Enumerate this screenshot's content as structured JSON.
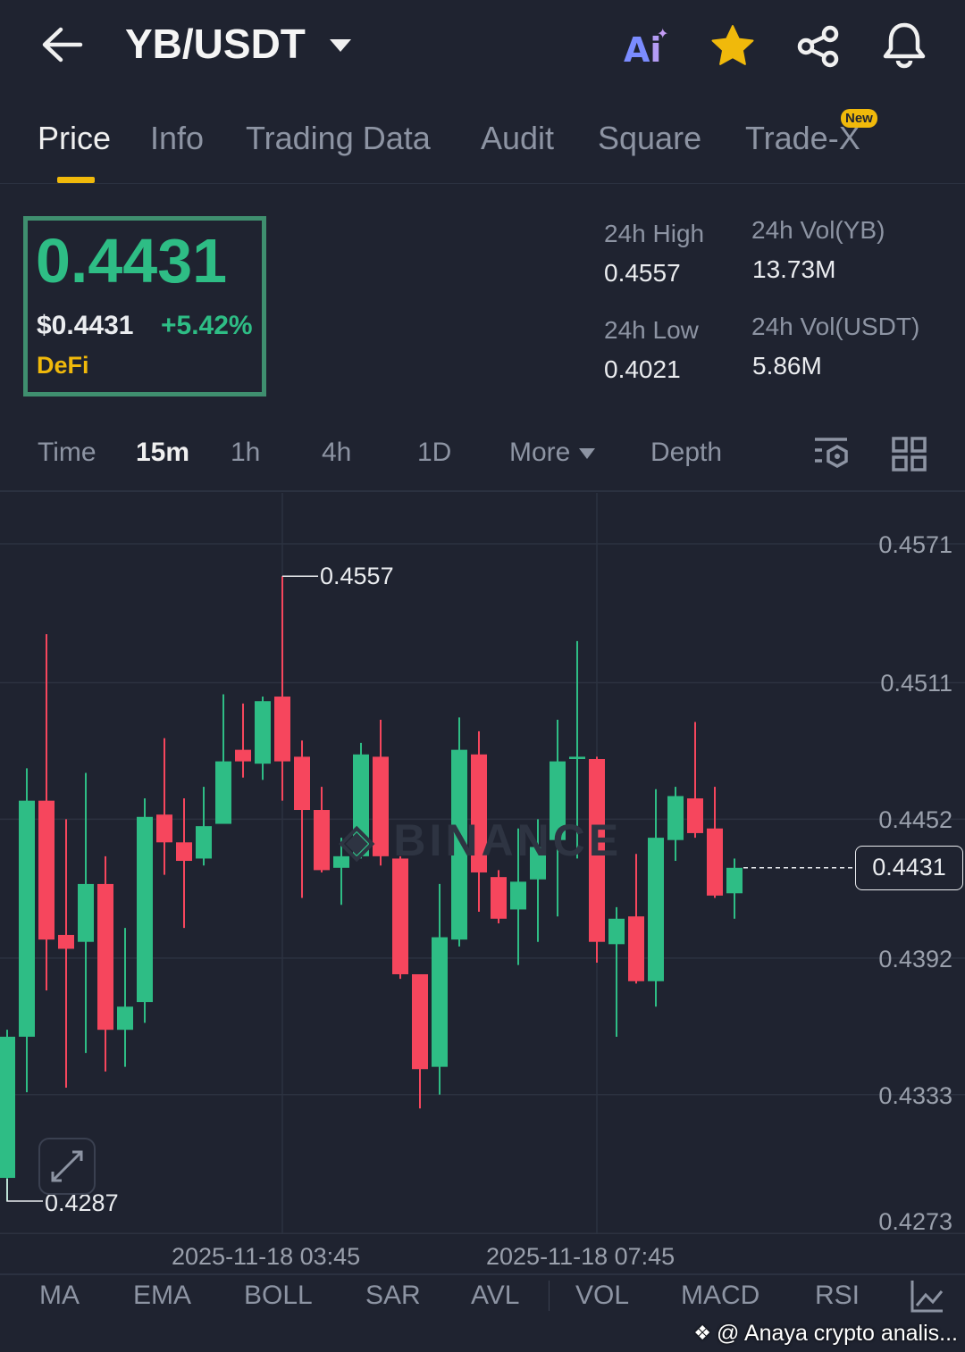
{
  "header": {
    "title": "YB/USDT",
    "icons": [
      "back-arrow-icon",
      "chevron-down-icon",
      "ai-icon",
      "star-icon",
      "share-icon",
      "bell-icon"
    ]
  },
  "tabs": [
    {
      "label": "Price"
    },
    {
      "label": "Info"
    },
    {
      "label": "Trading Data"
    },
    {
      "label": "Audit"
    },
    {
      "label": "Square"
    },
    {
      "label": "Trade-X",
      "badge": "New"
    }
  ],
  "price": {
    "last": "0.4431",
    "usd": "$0.4431",
    "change": "+5.42%",
    "tag": "DeFi"
  },
  "stats": {
    "high_label": "24h High",
    "high": "0.4557",
    "low_label": "24h Low",
    "low": "0.4021",
    "vol_yb_label": "24h Vol(YB)",
    "vol_yb": "13.73M",
    "vol_usdt_label": "24h Vol(USDT)",
    "vol_usdt": "5.86M"
  },
  "timeframes": {
    "time": "Time",
    "items": [
      "15m",
      "1h",
      "4h",
      "1D"
    ],
    "active": "15m",
    "more": "More",
    "depth": "Depth"
  },
  "colors": {
    "up": "#2ebd85",
    "down": "#f6465d",
    "accent": "#f0b90b",
    "bg": "#1f2330"
  },
  "indicators": [
    "MA",
    "EMA",
    "BOLL",
    "SAR",
    "AVL",
    "VOL",
    "MACD",
    "RSI"
  ],
  "watermark": "@ Anaya crypto analis...",
  "chart_data": {
    "type": "candlestick",
    "interval": "15m",
    "ylim": [
      0.42727,
      0.4593
    ],
    "y_ticks": [
      "0.4571",
      "0.4511",
      "0.4452",
      "0.4392",
      "0.4333",
      "0.4273"
    ],
    "x_ticks": [
      "2025-11-18 03:45",
      "2025-11-18 07:45"
    ],
    "high_marker": "0.4557",
    "low_marker": "0.4287",
    "current_price": "0.4431",
    "candles": [
      [
        0.4297,
        0.4361,
        0.4287,
        0.4358
      ],
      [
        0.4358,
        0.4474,
        0.4334,
        0.446
      ],
      [
        0.446,
        0.4532,
        0.4378,
        0.44
      ],
      [
        0.4402,
        0.4452,
        0.4336,
        0.4396
      ],
      [
        0.4399,
        0.4472,
        0.4351,
        0.4424
      ],
      [
        0.4424,
        0.4436,
        0.4343,
        0.4361
      ],
      [
        0.4361,
        0.4405,
        0.4345,
        0.4371
      ],
      [
        0.4373,
        0.4461,
        0.4364,
        0.4453
      ],
      [
        0.4454,
        0.4487,
        0.4428,
        0.4442
      ],
      [
        0.4442,
        0.4461,
        0.4405,
        0.4434
      ],
      [
        0.4435,
        0.4466,
        0.4432,
        0.4449
      ],
      [
        0.445,
        0.4506,
        0.445,
        0.4477
      ],
      [
        0.4482,
        0.4502,
        0.447,
        0.4477
      ],
      [
        0.4476,
        0.4505,
        0.4469,
        0.4503
      ],
      [
        0.4505,
        0.4557,
        0.446,
        0.4477
      ],
      [
        0.4479,
        0.4486,
        0.4418,
        0.4456
      ],
      [
        0.4456,
        0.4466,
        0.4429,
        0.443
      ],
      [
        0.4431,
        0.4444,
        0.4415,
        0.4436
      ],
      [
        0.4436,
        0.4485,
        0.4435,
        0.448
      ],
      [
        0.4479,
        0.4495,
        0.4432,
        0.4436
      ],
      [
        0.4435,
        0.4436,
        0.4383,
        0.4385
      ],
      [
        0.4385,
        0.4385,
        0.4327,
        0.4344
      ],
      [
        0.4345,
        0.4424,
        0.4333,
        0.4401
      ],
      [
        0.44,
        0.4496,
        0.4397,
        0.4482
      ],
      [
        0.448,
        0.449,
        0.4412,
        0.4429
      ],
      [
        0.4427,
        0.443,
        0.4407,
        0.4409
      ],
      [
        0.4413,
        0.4448,
        0.4389,
        0.4425
      ],
      [
        0.4426,
        0.4452,
        0.4399,
        0.444
      ],
      [
        0.4443,
        0.4495,
        0.441,
        0.4477
      ],
      [
        0.4478,
        0.4529,
        0.4435,
        0.4479
      ],
      [
        0.4478,
        0.4479,
        0.439,
        0.4399
      ],
      [
        0.4398,
        0.4414,
        0.4358,
        0.4409
      ],
      [
        0.441,
        0.4437,
        0.4381,
        0.4382
      ],
      [
        0.4382,
        0.4465,
        0.4371,
        0.4444
      ],
      [
        0.4443,
        0.4466,
        0.4434,
        0.4462
      ],
      [
        0.4461,
        0.4494,
        0.4444,
        0.4446
      ],
      [
        0.4448,
        0.4466,
        0.4418,
        0.4419
      ],
      [
        0.442,
        0.4435,
        0.4409,
        0.4431
      ]
    ],
    "candle_format": [
      "open",
      "high",
      "low",
      "close"
    ]
  }
}
